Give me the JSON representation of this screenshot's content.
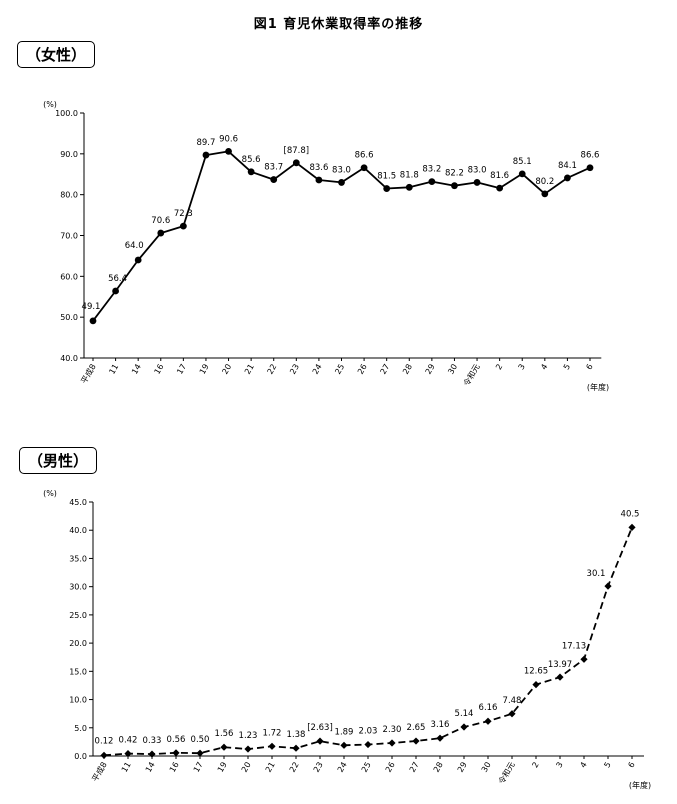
{
  "figure_title": "図1 育児休業取得率の推移",
  "chart_data": [
    {
      "type": "line",
      "section_label": "（女性）",
      "categories": [
        "平成8",
        "11",
        "14",
        "16",
        "17",
        "19",
        "20",
        "21",
        "22",
        "23",
        "24",
        "25",
        "26",
        "27",
        "28",
        "29",
        "30",
        "令和元",
        "2",
        "3",
        "4",
        "5",
        "6"
      ],
      "values": [
        49.1,
        56.4,
        64.0,
        70.6,
        72.3,
        89.7,
        90.6,
        85.6,
        83.7,
        87.8,
        83.6,
        83.0,
        86.6,
        81.5,
        81.8,
        83.2,
        82.2,
        83.0,
        81.6,
        85.1,
        80.2,
        84.1,
        86.6
      ],
      "data_labels": [
        "49.1",
        "56.4",
        "64.0",
        "70.6",
        "72.3",
        "89.7",
        "90.6",
        "85.6",
        "83.7",
        "[87.8]",
        "83.6",
        "83.0",
        "86.6",
        "81.5",
        "81.8",
        "83.2",
        "82.2",
        "83.0",
        "81.6",
        "85.1",
        "80.2",
        "84.1",
        "86.6"
      ],
      "y_ticks": [
        "100.0",
        "90.0",
        "80.0",
        "70.0",
        "60.0",
        "50.0",
        "40.0"
      ],
      "ylim": [
        40,
        100
      ],
      "y_unit": "(%)",
      "x_unit": "(年度)",
      "marker": "circle",
      "line_style": "solid",
      "color": "#000000"
    },
    {
      "type": "line",
      "section_label": "（男性）",
      "categories": [
        "平成8",
        "11",
        "14",
        "16",
        "17",
        "19",
        "20",
        "21",
        "22",
        "23",
        "24",
        "25",
        "26",
        "27",
        "28",
        "29",
        "30",
        "令和元",
        "2",
        "3",
        "4",
        "5",
        "6"
      ],
      "values": [
        0.12,
        0.42,
        0.33,
        0.56,
        0.5,
        1.56,
        1.23,
        1.72,
        1.38,
        2.63,
        1.89,
        2.03,
        2.3,
        2.65,
        3.16,
        5.14,
        6.16,
        7.48,
        12.65,
        13.97,
        17.13,
        30.1,
        40.5
      ],
      "data_labels": [
        "0.12",
        "0.42",
        "0.33",
        "0.56",
        "0.50",
        "1.56",
        "1.23",
        "1.72",
        "1.38",
        "[2.63]",
        "1.89",
        "2.03",
        "2.30",
        "2.65",
        "3.16",
        "5.14",
        "6.16",
        "7.48",
        "12.65",
        "13.97",
        "17.13",
        "30.1",
        "40.5"
      ],
      "y_ticks": [
        "45.0",
        "40.0",
        "35.0",
        "30.0",
        "25.0",
        "20.0",
        "15.0",
        "10.0",
        "5.0",
        "0.0"
      ],
      "ylim": [
        0,
        45
      ],
      "y_unit": "(%)",
      "x_unit": "(年度)",
      "marker": "diamond",
      "line_style": "dashed",
      "color": "#000000"
    }
  ]
}
